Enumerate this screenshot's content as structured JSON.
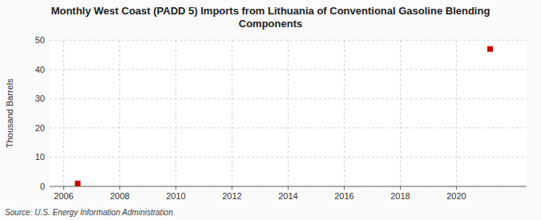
{
  "chart_data": {
    "type": "scatter",
    "title": "Monthly West Coast (PADD 5) Imports from Lithuania of Conventional Gasoline Blending\nComponents",
    "y_label": "Thousand Barrels",
    "source": "Source: U.S. Energy Information Administration",
    "x": [
      2006.5,
      2021.2
    ],
    "values": [
      1,
      47
    ],
    "color": "#cc0000",
    "marker": "square",
    "xlim": [
      2005.5,
      2022.5
    ],
    "ylim": [
      0,
      50
    ],
    "xticks": [
      2006,
      2008,
      2010,
      2012,
      2014,
      2016,
      2018,
      2020
    ],
    "yticks": [
      0,
      10,
      20,
      30,
      40,
      50
    ],
    "grid": true
  }
}
